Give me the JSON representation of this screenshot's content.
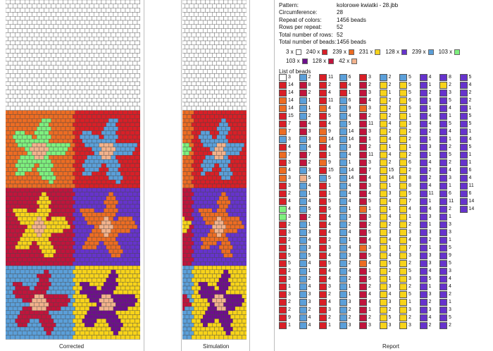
{
  "palette": {
    "1": "#ffffff",
    "2": "#d81f27",
    "3": "#ec6c23",
    "4": "#f7d31a",
    "5": "#6633cc",
    "6": "#5b9fd9",
    "7": "#7ef07e",
    "8": "#c0143c",
    "9": "#f2b28c",
    "10": "#ffffff"
  },
  "info": [
    {
      "label": "Pattern:",
      "value": "kolorowe kwiatki - 28.jbb"
    },
    {
      "label": "Circumference:",
      "value": "28"
    },
    {
      "label": "Repeat of colors:",
      "value": "1456 beads"
    },
    {
      "label": "Rows per repeat:",
      "value": "52"
    },
    {
      "label": "Total number of rows:",
      "value": "52"
    },
    {
      "label": "Total number of beads:",
      "value": "1456 beads"
    }
  ],
  "legend_row1": [
    {
      "count": "3 x",
      "color": "#ffffff"
    },
    {
      "count": "240 x",
      "color": "#d81f27"
    },
    {
      "count": "239 x",
      "color": "#ec6c23"
    },
    {
      "count": "231 x",
      "color": "#f7d31a"
    },
    {
      "count": "128 x",
      "color": "#6633cc"
    },
    {
      "count": "239 x",
      "color": "#5b9fd9"
    },
    {
      "count": "103 x",
      "color": "#7ef07e"
    }
  ],
  "legend_row2": [
    {
      "count": "103 x",
      "color": "#6e0f8c"
    },
    {
      "count": "128 x",
      "color": "#c0143c"
    },
    {
      "count": "42 x",
      "color": "#f2b28c"
    }
  ],
  "list_title": "List of beads",
  "bead_columns": [
    [
      [
        1,
        3
      ],
      [
        2,
        14
      ],
      [
        2,
        14
      ],
      [
        3,
        14
      ],
      [
        3,
        14
      ],
      [
        2,
        15
      ],
      [
        2,
        7
      ],
      [
        3,
        7
      ],
      [
        6,
        3
      ],
      [
        2,
        4
      ],
      [
        3,
        7
      ],
      [
        2,
        3
      ],
      [
        3,
        4
      ],
      [
        3,
        3
      ],
      [
        2,
        3
      ],
      [
        2,
        2
      ],
      [
        2,
        4
      ],
      [
        7,
        4
      ],
      [
        7,
        3
      ],
      [
        2,
        2
      ],
      [
        2,
        3
      ],
      [
        2,
        2
      ],
      [
        2,
        1
      ],
      [
        2,
        5
      ],
      [
        2,
        5
      ],
      [
        2,
        2
      ],
      [
        2,
        3
      ],
      [
        2,
        1
      ],
      [
        2,
        3
      ],
      [
        2,
        2
      ],
      [
        2,
        2
      ],
      [
        2,
        9
      ],
      [
        2,
        1
      ]
    ],
    [
      [
        6,
        2
      ],
      [
        8,
        8
      ],
      [
        8,
        2
      ],
      [
        6,
        1
      ],
      [
        6,
        1
      ],
      [
        6,
        2
      ],
      [
        8,
        4
      ],
      [
        8,
        3
      ],
      [
        6,
        3
      ],
      [
        6,
        4
      ],
      [
        8,
        7
      ],
      [
        8,
        2
      ],
      [
        6,
        3
      ],
      [
        9,
        5
      ],
      [
        6,
        4
      ],
      [
        6,
        1
      ],
      [
        6,
        4
      ],
      [
        6,
        5
      ],
      [
        8,
        2
      ],
      [
        6,
        1
      ],
      [
        6,
        3
      ],
      [
        6,
        4
      ],
      [
        6,
        3
      ],
      [
        6,
        5
      ],
      [
        6,
        4
      ],
      [
        6,
        1
      ],
      [
        6,
        2
      ],
      [
        6,
        4
      ],
      [
        6,
        3
      ],
      [
        6,
        3
      ],
      [
        6,
        2
      ],
      [
        6,
        4
      ],
      [
        6,
        4
      ]
    ],
    [
      [
        2,
        11
      ],
      [
        2,
        2
      ],
      [
        2,
        4
      ],
      [
        2,
        11
      ],
      [
        3,
        4
      ],
      [
        2,
        5
      ],
      [
        2,
        4
      ],
      [
        3,
        9
      ],
      [
        3,
        14
      ],
      [
        2,
        4
      ],
      [
        2,
        1
      ],
      [
        3,
        9
      ],
      [
        2,
        15
      ],
      [
        6,
        5
      ],
      [
        2,
        1
      ],
      [
        2,
        1
      ],
      [
        2,
        5
      ],
      [
        2,
        5
      ],
      [
        2,
        4
      ],
      [
        2,
        4
      ],
      [
        2,
        4
      ],
      [
        2,
        2
      ],
      [
        2,
        3
      ],
      [
        2,
        4
      ],
      [
        2,
        5
      ],
      [
        2,
        4
      ],
      [
        2,
        4
      ],
      [
        2,
        3
      ],
      [
        2,
        2
      ],
      [
        2,
        4
      ],
      [
        2,
        3
      ],
      [
        2,
        2
      ],
      [
        2,
        1
      ]
    ],
    [
      [
        6,
        6
      ],
      [
        2,
        4
      ],
      [
        2,
        1
      ],
      [
        6,
        6
      ],
      [
        6,
        9
      ],
      [
        6,
        4
      ],
      [
        6,
        5
      ],
      [
        6,
        14
      ],
      [
        6,
        14
      ],
      [
        6,
        3
      ],
      [
        6,
        4
      ],
      [
        6,
        1
      ],
      [
        6,
        14
      ],
      [
        6,
        14
      ],
      [
        6,
        4
      ],
      [
        6,
        4
      ],
      [
        6,
        4
      ],
      [
        6,
        1
      ],
      [
        6,
        3
      ],
      [
        6,
        2
      ],
      [
        6,
        4
      ],
      [
        6,
        1
      ],
      [
        6,
        4
      ],
      [
        6,
        3
      ],
      [
        6,
        2
      ],
      [
        6,
        4
      ],
      [
        6,
        2
      ],
      [
        6,
        1
      ],
      [
        6,
        1
      ],
      [
        6,
        3
      ],
      [
        6,
        2
      ],
      [
        6,
        2
      ],
      [
        6,
        3
      ]
    ],
    [
      [
        2,
        3
      ],
      [
        8,
        2
      ],
      [
        8,
        3
      ],
      [
        8,
        4
      ],
      [
        3,
        3
      ],
      [
        8,
        2
      ],
      [
        8,
        11
      ],
      [
        8,
        3
      ],
      [
        8,
        1
      ],
      [
        8,
        2
      ],
      [
        8,
        11
      ],
      [
        8,
        3
      ],
      [
        8,
        7
      ],
      [
        8,
        4
      ],
      [
        8,
        3
      ],
      [
        8,
        4
      ],
      [
        8,
        5
      ],
      [
        3,
        1
      ],
      [
        8,
        3
      ],
      [
        8,
        2
      ],
      [
        8,
        5
      ],
      [
        8,
        4
      ],
      [
        3,
        3
      ],
      [
        8,
        5
      ],
      [
        3,
        4
      ],
      [
        8,
        1
      ],
      [
        8,
        5
      ],
      [
        8,
        2
      ],
      [
        8,
        4
      ],
      [
        8,
        4
      ],
      [
        8,
        1
      ],
      [
        8,
        2
      ],
      [
        8,
        3
      ]
    ],
    [
      [
        6,
        2
      ],
      [
        4,
        2
      ],
      [
        4,
        1
      ],
      [
        4,
        2
      ],
      [
        4,
        2
      ],
      [
        4,
        2
      ],
      [
        4,
        4
      ],
      [
        4,
        2
      ],
      [
        4,
        4
      ],
      [
        4,
        1
      ],
      [
        4,
        4
      ],
      [
        4,
        2
      ],
      [
        4,
        15
      ],
      [
        4,
        14
      ],
      [
        4,
        1
      ],
      [
        4,
        3
      ],
      [
        4,
        4
      ],
      [
        4,
        1
      ],
      [
        4,
        4
      ],
      [
        4,
        2
      ],
      [
        4,
        3
      ],
      [
        4,
        4
      ],
      [
        4,
        1
      ],
      [
        4,
        4
      ],
      [
        4,
        5
      ],
      [
        4,
        2
      ],
      [
        4,
        1
      ],
      [
        4,
        3
      ],
      [
        4,
        4
      ],
      [
        4,
        3
      ],
      [
        4,
        2
      ],
      [
        4,
        5
      ],
      [
        4,
        3
      ]
    ],
    [
      [
        6,
        5
      ],
      [
        4,
        5
      ],
      [
        4,
        5
      ],
      [
        4,
        6
      ],
      [
        4,
        5
      ],
      [
        4,
        1
      ],
      [
        4,
        3
      ],
      [
        4,
        2
      ],
      [
        4,
        2
      ],
      [
        4,
        1
      ],
      [
        4,
        2
      ],
      [
        4,
        6
      ],
      [
        4,
        2
      ],
      [
        4,
        8
      ],
      [
        4,
        8
      ],
      [
        4,
        5
      ],
      [
        4,
        7
      ],
      [
        4,
        4
      ],
      [
        4,
        1
      ],
      [
        4,
        2
      ],
      [
        4,
        3
      ],
      [
        4,
        4
      ],
      [
        4,
        7
      ],
      [
        4,
        3
      ],
      [
        4,
        2
      ],
      [
        4,
        5
      ],
      [
        4,
        3
      ],
      [
        4,
        2
      ],
      [
        4,
        5
      ],
      [
        4,
        1
      ],
      [
        4,
        3
      ],
      [
        4,
        2
      ],
      [
        4,
        3
      ]
    ],
    [
      [
        5,
        4
      ],
      [
        5,
        1
      ],
      [
        5,
        2
      ],
      [
        5,
        3
      ],
      [
        5,
        1
      ],
      [
        5,
        4
      ],
      [
        5,
        4
      ],
      [
        5,
        2
      ],
      [
        5,
        1
      ],
      [
        5,
        3
      ],
      [
        5,
        1
      ],
      [
        5,
        4
      ],
      [
        5,
        2
      ],
      [
        5,
        2
      ],
      [
        5,
        4
      ],
      [
        5,
        11
      ],
      [
        5,
        1
      ],
      [
        5,
        4
      ],
      [
        5,
        3
      ],
      [
        5,
        1
      ],
      [
        5,
        3
      ],
      [
        5,
        2
      ],
      [
        5,
        1
      ],
      [
        5,
        3
      ],
      [
        5,
        3
      ],
      [
        5,
        4
      ],
      [
        5,
        5
      ],
      [
        5,
        1
      ],
      [
        5,
        3
      ],
      [
        5,
        2
      ],
      [
        5,
        3
      ],
      [
        5,
        4
      ],
      [
        5,
        2
      ]
    ],
    [
      [
        5,
        8
      ],
      [
        4,
        2
      ],
      [
        5,
        3
      ],
      [
        5,
        5
      ],
      [
        5,
        4
      ],
      [
        5,
        1
      ],
      [
        5,
        5
      ],
      [
        5,
        4
      ],
      [
        5,
        1
      ],
      [
        5,
        2
      ],
      [
        5,
        5
      ],
      [
        5,
        2
      ],
      [
        5,
        4
      ],
      [
        5,
        3
      ],
      [
        5,
        1
      ],
      [
        5,
        6
      ],
      [
        5,
        11
      ],
      [
        5,
        2
      ],
      [
        5,
        1
      ],
      [
        5,
        3
      ],
      [
        5,
        3
      ],
      [
        5,
        1
      ],
      [
        5,
        5
      ],
      [
        5,
        9
      ],
      [
        5,
        5
      ],
      [
        5,
        3
      ],
      [
        5,
        4
      ],
      [
        5,
        4
      ],
      [
        5,
        2
      ],
      [
        5,
        1
      ],
      [
        5,
        3
      ],
      [
        5,
        5
      ],
      [
        5,
        2
      ]
    ],
    [
      [
        5,
        5
      ],
      [
        5,
        4
      ],
      [
        5,
        2
      ],
      [
        5,
        2
      ],
      [
        5,
        1
      ],
      [
        5,
        5
      ],
      [
        5,
        5
      ],
      [
        5,
        1
      ],
      [
        5,
        4
      ],
      [
        5,
        5
      ],
      [
        5,
        1
      ],
      [
        5,
        1
      ],
      [
        5,
        6
      ],
      [
        5,
        4
      ],
      [
        5,
        11
      ],
      [
        5,
        6
      ],
      [
        5,
        14
      ],
      [
        5,
        14
      ]
    ]
  ],
  "captions": {
    "corrected": "Corrected",
    "simulation": "Simulation",
    "report": "Report"
  }
}
